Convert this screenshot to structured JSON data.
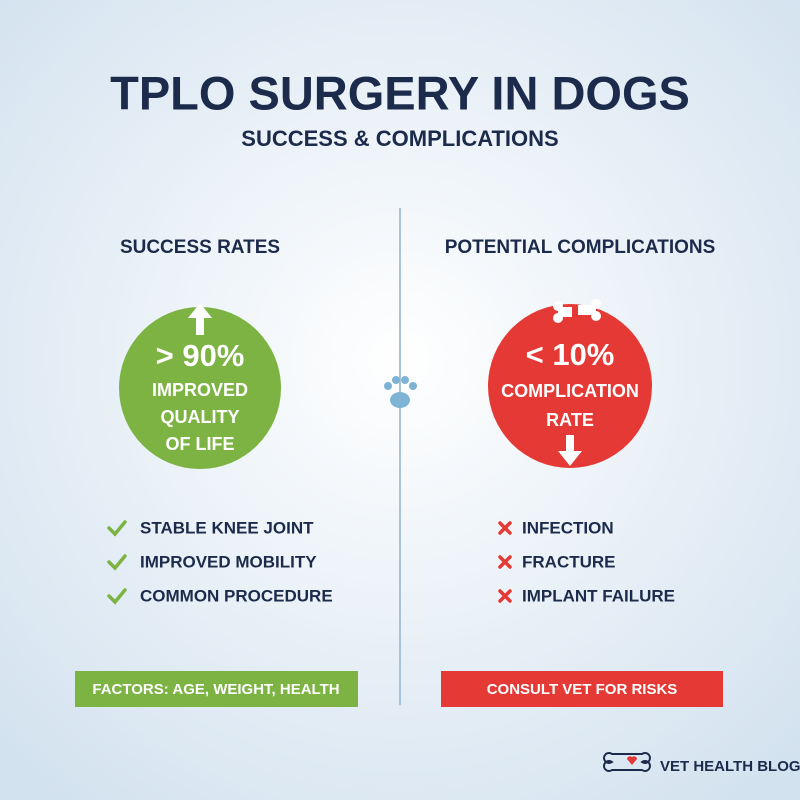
{
  "header": {
    "title": "TPLO SURGERY IN DOGS",
    "subtitle": "SUCCESS & COMPLICATIONS"
  },
  "left": {
    "heading": "SUCCESS RATES",
    "stat": "> 90%",
    "stat_label": [
      "IMPROVED",
      "QUALITY",
      "OF LIFE"
    ],
    "items": [
      "STABLE KNEE JOINT",
      "IMPROVED MOBILITY",
      "COMMON PROCEDURE"
    ],
    "footer": "FACTORS: AGE, WEIGHT, HEALTH"
  },
  "right": {
    "heading": "POTENTIAL COMPLICATIONS",
    "stat": "< 10%",
    "stat_label": [
      "COMPLICATION",
      "RATE"
    ],
    "items": [
      "INFECTION",
      "FRACTURE",
      "IMPLANT FAILURE"
    ],
    "footer": "CONSULT VET FOR RISKS"
  },
  "brand": "VET HEALTH BLOG"
}
